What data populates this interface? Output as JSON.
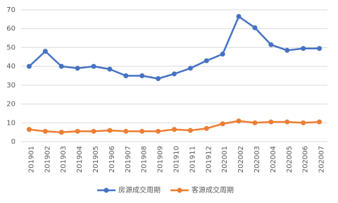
{
  "chart_data": {
    "type": "line",
    "categories": [
      "201901",
      "201902",
      "201903",
      "201904",
      "201905",
      "201906",
      "201907",
      "201908",
      "201909",
      "201910",
      "201911",
      "201912",
      "202001",
      "202002",
      "202003",
      "202004",
      "202005",
      "202006",
      "202007"
    ],
    "series": [
      {
        "name": "房源成交周期",
        "color": "#4472c4",
        "values": [
          40,
          48,
          40,
          39,
          40,
          38.5,
          35,
          35,
          33.5,
          36,
          39,
          43,
          46.5,
          66.5,
          60.5,
          51.5,
          48.5,
          49.5,
          49.5
        ]
      },
      {
        "name": "客源成交周期",
        "color": "#ed7d31",
        "values": [
          6.5,
          5.5,
          5,
          5.5,
          5.5,
          6,
          5.5,
          5.5,
          5.5,
          6.5,
          6,
          7,
          9.5,
          11,
          10,
          10.5,
          10.5,
          10,
          10.5
        ]
      }
    ],
    "ylim": [
      0,
      70
    ],
    "yticks": [
      0,
      10,
      20,
      30,
      40,
      50,
      60,
      70
    ],
    "grid": true,
    "legend": "bottom"
  }
}
